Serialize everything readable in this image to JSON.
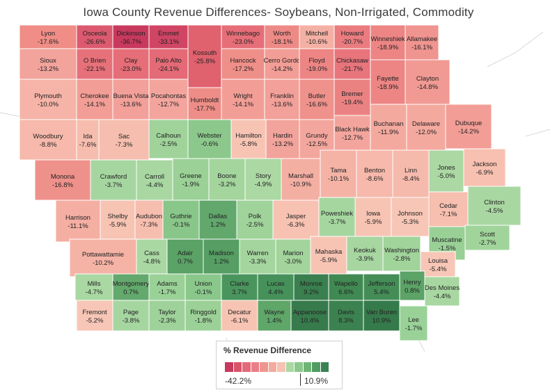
{
  "title": "Iowa County Revenue Differences- Soybeans, Non-Irrigated, Commodity",
  "legend": {
    "title": "% Revenue Difference",
    "min_label": "-42.2%",
    "max_label": "10.9%",
    "colors": [
      "#c8395e",
      "#d9536a",
      "#e2697a",
      "#ea7f86",
      "#ef9590",
      "#f2ab9e",
      "#f5c2b3",
      "#a9d8a2",
      "#8bc88b",
      "#6fb477",
      "#4f9b62",
      "#3a8154"
    ]
  },
  "counties": [
    {
      "name": "Lyon",
      "value": "-17.6%",
      "color": "#ef8d86"
    },
    {
      "name": "Osceola",
      "value": "-26.6%",
      "color": "#dc5a6f"
    },
    {
      "name": "Dickinson",
      "value": "-36.7%",
      "color": "#c8395e"
    },
    {
      "name": "Emmet",
      "value": "-33.1%",
      "color": "#d04564"
    },
    {
      "name": "Kossuth",
      "value": "-25.8%",
      "color": "#e0626f"
    },
    {
      "name": "Winnebago",
      "value": "-23.0%",
      "color": "#e66e78"
    },
    {
      "name": "Worth",
      "value": "-18.1%",
      "color": "#ee8a86"
    },
    {
      "name": "Mitchell",
      "value": "-10.6%",
      "color": "#f4b0a4"
    },
    {
      "name": "Howard",
      "value": "-20.7%",
      "color": "#ea7c80"
    },
    {
      "name": "Winneshiek",
      "value": "-18.9%",
      "color": "#ec8584"
    },
    {
      "name": "Allamakee",
      "value": "-16.1%",
      "color": "#f09490"
    },
    {
      "name": "Sioux",
      "value": "-13.2%",
      "color": "#f2a39b"
    },
    {
      "name": "O Brien",
      "value": "-22.1%",
      "color": "#e7717a"
    },
    {
      "name": "Clay",
      "value": "-23.0%",
      "color": "#e66e78"
    },
    {
      "name": "Palo Alto",
      "value": "-24.1%",
      "color": "#e36a76"
    },
    {
      "name": "Hancock",
      "value": "-17.2%",
      "color": "#ef8f89"
    },
    {
      "name": "Cerro Gordo",
      "value": "-14.2%",
      "color": "#f29d96"
    },
    {
      "name": "Floyd",
      "value": "-19.0%",
      "color": "#ec8584"
    },
    {
      "name": "Chickasaw",
      "value": "-21.7%",
      "color": "#e8757c"
    },
    {
      "name": "Fayette",
      "value": "-18.9%",
      "color": "#ec8584"
    },
    {
      "name": "Clayton",
      "value": "-14.8%",
      "color": "#f19a93"
    },
    {
      "name": "Plymouth",
      "value": "-10.0%",
      "color": "#f5b4a7"
    },
    {
      "name": "Cherokee",
      "value": "-14.1%",
      "color": "#f29e96"
    },
    {
      "name": "Buena Vista",
      "value": "-13.6%",
      "color": "#f2a099"
    },
    {
      "name": "Pocahontas",
      "value": "-12.7%",
      "color": "#f3a59d"
    },
    {
      "name": "Humboldt",
      "value": "-17.7%",
      "color": "#ee8d87"
    },
    {
      "name": "Wright",
      "value": "-14.1%",
      "color": "#f29e96"
    },
    {
      "name": "Franklin",
      "value": "-13.6%",
      "color": "#f2a099"
    },
    {
      "name": "Butler",
      "value": "-16.6%",
      "color": "#ef928c"
    },
    {
      "name": "Bremer",
      "value": "-19.4%",
      "color": "#eb8282"
    },
    {
      "name": "Woodbury",
      "value": "-8.8%",
      "color": "#f6b9ab"
    },
    {
      "name": "Ida",
      "value": "-7.6%",
      "color": "#f6bdae"
    },
    {
      "name": "Sac",
      "value": "-7.3%",
      "color": "#f6beaf"
    },
    {
      "name": "Calhoun",
      "value": "-2.5%",
      "color": "#9fd39a"
    },
    {
      "name": "Webster",
      "value": "-0.6%",
      "color": "#8cc88c"
    },
    {
      "name": "Hamilton",
      "value": "-5.8%",
      "color": "#f7c4b4"
    },
    {
      "name": "Hardin",
      "value": "-13.2%",
      "color": "#f2a39b"
    },
    {
      "name": "Grundy",
      "value": "-12.5%",
      "color": "#f3a69d"
    },
    {
      "name": "Black Hawk",
      "value": "-12.7%",
      "color": "#f3a59d"
    },
    {
      "name": "Buchanan",
      "value": "-11.9%",
      "color": "#f4a99f"
    },
    {
      "name": "Delaware",
      "value": "-12.0%",
      "color": "#f4a99f"
    },
    {
      "name": "Dubuque",
      "value": "-14.2%",
      "color": "#f29d96"
    },
    {
      "name": "Monona",
      "value": "-16.8%",
      "color": "#ef918b"
    },
    {
      "name": "Crawford",
      "value": "-3.7%",
      "color": "#a6d6a0"
    },
    {
      "name": "Carroll",
      "value": "-4.4%",
      "color": "#a8d7a1"
    },
    {
      "name": "Greene",
      "value": "-1.9%",
      "color": "#9bd197"
    },
    {
      "name": "Boone",
      "value": "-3.2%",
      "color": "#a3d59d"
    },
    {
      "name": "Story",
      "value": "-4.9%",
      "color": "#abd8a3"
    },
    {
      "name": "Marshall",
      "value": "-10.9%",
      "color": "#f4afa3"
    },
    {
      "name": "Tama",
      "value": "-10.1%",
      "color": "#f5b3a6"
    },
    {
      "name": "Benton",
      "value": "-8.6%",
      "color": "#f6b9ab"
    },
    {
      "name": "Linn",
      "value": "-8.4%",
      "color": "#f6baac"
    },
    {
      "name": "Jones",
      "value": "-5.0%",
      "color": "#abd8a3"
    },
    {
      "name": "Jackson",
      "value": "-6.9%",
      "color": "#f7c0b0"
    },
    {
      "name": "Harrison",
      "value": "-11.1%",
      "color": "#f4aea2"
    },
    {
      "name": "Shelby",
      "value": "-5.9%",
      "color": "#f7c4b4"
    },
    {
      "name": "Audubon",
      "value": "-7.3%",
      "color": "#f6beaf"
    },
    {
      "name": "Guthrie",
      "value": "-0.1%",
      "color": "#89c68a"
    },
    {
      "name": "Dallas",
      "value": "1.2%",
      "color": "#62a86c"
    },
    {
      "name": "Polk",
      "value": "-2.5%",
      "color": "#9fd39a"
    },
    {
      "name": "Jasper",
      "value": "-6.3%",
      "color": "#f7c2b2"
    },
    {
      "name": "Poweshiek",
      "value": "-3.7%",
      "color": "#a6d6a0"
    },
    {
      "name": "Iowa",
      "value": "-5.9%",
      "color": "#f7c4b4"
    },
    {
      "name": "Johnson",
      "value": "-5.3%",
      "color": "#f7c6b6"
    },
    {
      "name": "Cedar",
      "value": "-7.1%",
      "color": "#f6bfaf"
    },
    {
      "name": "Clinton",
      "value": "-4.5%",
      "color": "#a9d7a2"
    },
    {
      "name": "Scott",
      "value": "-2.7%",
      "color": "#a0d49b"
    },
    {
      "name": "Muscatine",
      "value": "-1.5%",
      "color": "#99d096"
    },
    {
      "name": "Pottawattamie",
      "value": "-10.2%",
      "color": "#f5b3a6"
    },
    {
      "name": "Cass",
      "value": "-4.8%",
      "color": "#aad8a3"
    },
    {
      "name": "Adair",
      "value": "0.7%",
      "color": "#5aa266"
    },
    {
      "name": "Madison",
      "value": "1.2%",
      "color": "#569e63"
    },
    {
      "name": "Warren",
      "value": "-3.3%",
      "color": "#a4d59e"
    },
    {
      "name": "Marion",
      "value": "-3.0%",
      "color": "#a2d49c"
    },
    {
      "name": "Mahaska",
      "value": "-5.9%",
      "color": "#f7c4b4"
    },
    {
      "name": "Keokuk",
      "value": "-3.9%",
      "color": "#a7d6a0"
    },
    {
      "name": "Washington",
      "value": "-2.8%",
      "color": "#a1d49b"
    },
    {
      "name": "Louisa",
      "value": "-5.4%",
      "color": "#f7c6b6"
    },
    {
      "name": "Mills",
      "value": "-4.7%",
      "color": "#a9d8a2"
    },
    {
      "name": "Montgomery",
      "value": "0.7%",
      "color": "#63a96d"
    },
    {
      "name": "Adams",
      "value": "-1.7%",
      "color": "#9ad197"
    },
    {
      "name": "Union",
      "value": "-0.1%",
      "color": "#8ac78b"
    },
    {
      "name": "Clarke",
      "value": "3.7%",
      "color": "#4a955d"
    },
    {
      "name": "Lucas",
      "value": "4.4%",
      "color": "#46915a"
    },
    {
      "name": "Monroe",
      "value": "9.2%",
      "color": "#3a7f4f"
    },
    {
      "name": "Wapello",
      "value": "6.6%",
      "color": "#418953"
    },
    {
      "name": "Jefferson",
      "value": "5.4%",
      "color": "#448d57"
    },
    {
      "name": "Henry",
      "value": "0.8%",
      "color": "#5ba366"
    },
    {
      "name": "Des Moines",
      "value": "-4.4%",
      "color": "#a8d7a1"
    },
    {
      "name": "Fremont",
      "value": "-5.2%",
      "color": "#f7c6b6"
    },
    {
      "name": "Page",
      "value": "-3.8%",
      "color": "#a6d6a0"
    },
    {
      "name": "Taylor",
      "value": "-2.3%",
      "color": "#9ed29a"
    },
    {
      "name": "Ringgold",
      "value": "-1.8%",
      "color": "#9bd197"
    },
    {
      "name": "Decatur",
      "value": "-6.1%",
      "color": "#f7c3b3"
    },
    {
      "name": "Wayne",
      "value": "1.4%",
      "color": "#5fa669"
    },
    {
      "name": "Appanoose",
      "value": "10.4%",
      "color": "#377b4c"
    },
    {
      "name": "Davis",
      "value": "8.3%",
      "color": "#3c8250"
    },
    {
      "name": "Van Buren",
      "value": "10.9%",
      "color": "#357a4b"
    },
    {
      "name": "Lee",
      "value": "-1.7%",
      "color": "#9ad197"
    }
  ]
}
